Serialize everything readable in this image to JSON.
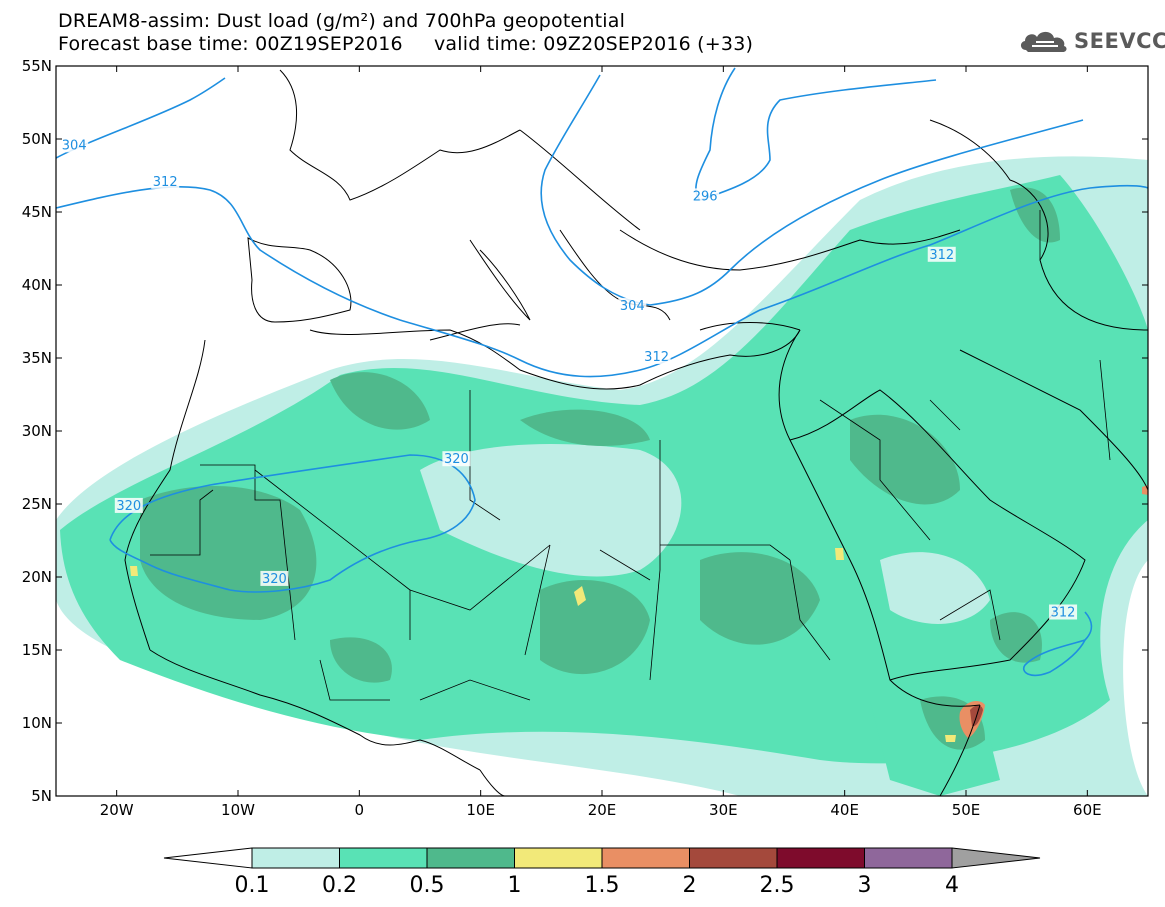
{
  "title": {
    "line1": "DREAM8-assim: Dust load (g/m²) and 700hPa geopotential",
    "line2": "Forecast base time: 00Z19SEP2016     valid time: 09Z20SEP2016 (+33)"
  },
  "logo": {
    "text": "SEEVCCC",
    "icon": "cloud-icon"
  },
  "map": {
    "projection": "lat-lon",
    "lon_range": [
      -25,
      65
    ],
    "lat_range": [
      5,
      55
    ],
    "lat_ticks": [
      {
        "value": 55,
        "label": "55N"
      },
      {
        "value": 50,
        "label": "50N"
      },
      {
        "value": 45,
        "label": "45N"
      },
      {
        "value": 40,
        "label": "40N"
      },
      {
        "value": 35,
        "label": "35N"
      },
      {
        "value": 30,
        "label": "30N"
      },
      {
        "value": 25,
        "label": "25N"
      },
      {
        "value": 20,
        "label": "20N"
      },
      {
        "value": 15,
        "label": "15N"
      },
      {
        "value": 10,
        "label": "10N"
      },
      {
        "value": 5,
        "label": "5N"
      }
    ],
    "lon_ticks": [
      {
        "value": -20,
        "label": "20W"
      },
      {
        "value": -10,
        "label": "10W"
      },
      {
        "value": 0,
        "label": "0"
      },
      {
        "value": 10,
        "label": "10E"
      },
      {
        "value": 20,
        "label": "20E"
      },
      {
        "value": 30,
        "label": "30E"
      },
      {
        "value": 40,
        "label": "40E"
      },
      {
        "value": 50,
        "label": "50E"
      },
      {
        "value": 60,
        "label": "60E"
      }
    ],
    "contour_color": "#1e8fe0",
    "contour_labels": [
      {
        "text": "304",
        "lon": -23.5,
        "lat": 49.5
      },
      {
        "text": "312",
        "lon": -16.0,
        "lat": 47.0
      },
      {
        "text": "296",
        "lon": 28.5,
        "lat": 46.0
      },
      {
        "text": "312",
        "lon": 48.0,
        "lat": 42.0
      },
      {
        "text": "304",
        "lon": 22.5,
        "lat": 38.5
      },
      {
        "text": "312",
        "lon": 24.5,
        "lat": 35.0
      },
      {
        "text": "320",
        "lon": 8.0,
        "lat": 28.0
      },
      {
        "text": "320",
        "lon": -19.0,
        "lat": 24.8
      },
      {
        "text": "320",
        "lon": -7.0,
        "lat": 19.8
      },
      {
        "text": "312",
        "lon": 58.0,
        "lat": 17.5
      }
    ]
  },
  "colorbar": {
    "levels": [
      "0.1",
      "0.2",
      "0.5",
      "1",
      "1.5",
      "2",
      "2.5",
      "3",
      "4"
    ],
    "colors": [
      "#bfeee6",
      "#59e2b5",
      "#4fb98c",
      "#f2e979",
      "#e98f64",
      "#a4493c",
      "#7e0b2c",
      "#8f679b"
    ],
    "over_color": "#a0a0a0",
    "under_color": "#ffffff"
  }
}
